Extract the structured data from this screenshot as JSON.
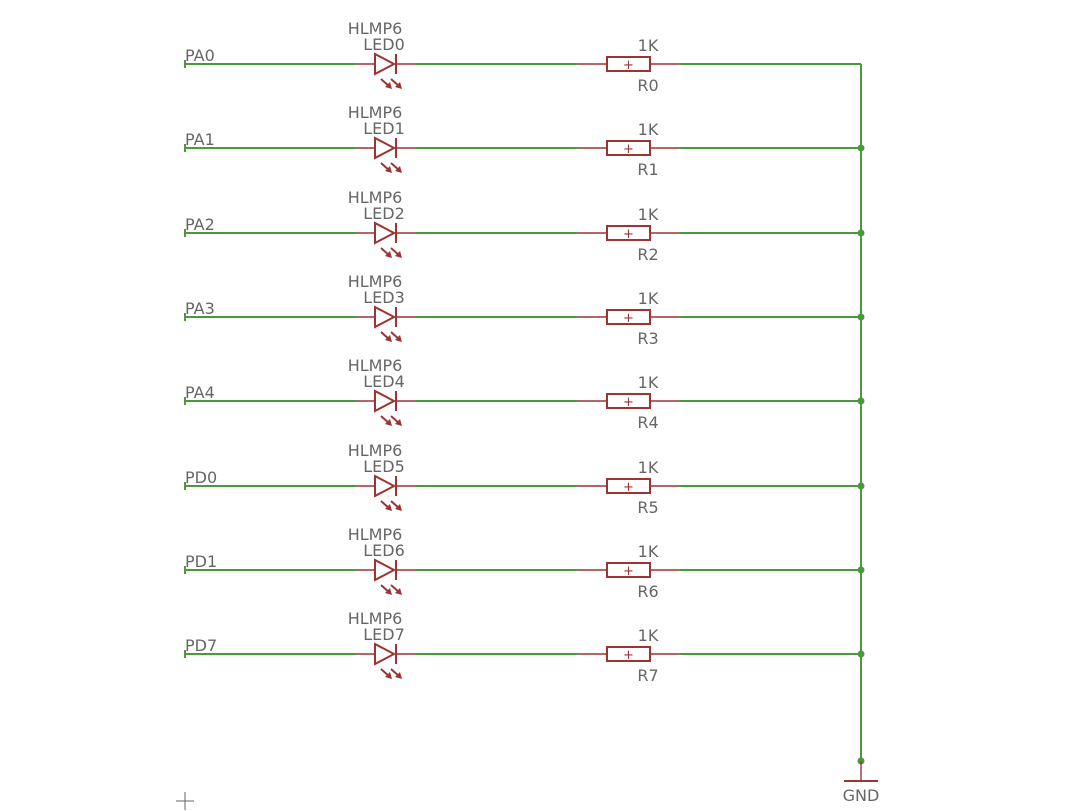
{
  "rows": [
    {
      "net": "PA0",
      "led_value": "HLMP6",
      "led_name": "LED0",
      "res_value": "1K",
      "res_name": "R0",
      "junction": false
    },
    {
      "net": "PA1",
      "led_value": "HLMP6",
      "led_name": "LED1",
      "res_value": "1K",
      "res_name": "R1",
      "junction": true
    },
    {
      "net": "PA2",
      "led_value": "HLMP6",
      "led_name": "LED2",
      "res_value": "1K",
      "res_name": "R2",
      "junction": true
    },
    {
      "net": "PA3",
      "led_value": "HLMP6",
      "led_name": "LED3",
      "res_value": "1K",
      "res_name": "R3",
      "junction": true
    },
    {
      "net": "PA4",
      "led_value": "HLMP6",
      "led_name": "LED4",
      "res_value": "1K",
      "res_name": "R4",
      "junction": true
    },
    {
      "net": "PD0",
      "led_value": "HLMP6",
      "led_name": "LED5",
      "res_value": "1K",
      "res_name": "R5",
      "junction": true
    },
    {
      "net": "PD1",
      "led_value": "HLMP6",
      "led_name": "LED6",
      "res_value": "1K",
      "res_name": "R6",
      "junction": true
    },
    {
      "net": "PD7",
      "led_value": "HLMP6",
      "led_name": "LED7",
      "res_value": "1K",
      "res_name": "R7",
      "junction": true
    }
  ],
  "ground": {
    "label": "GND"
  },
  "resistor_symbol": "+",
  "colors": {
    "wire": "#4a9a3c",
    "part": "#9c3434",
    "label": "#666666"
  }
}
